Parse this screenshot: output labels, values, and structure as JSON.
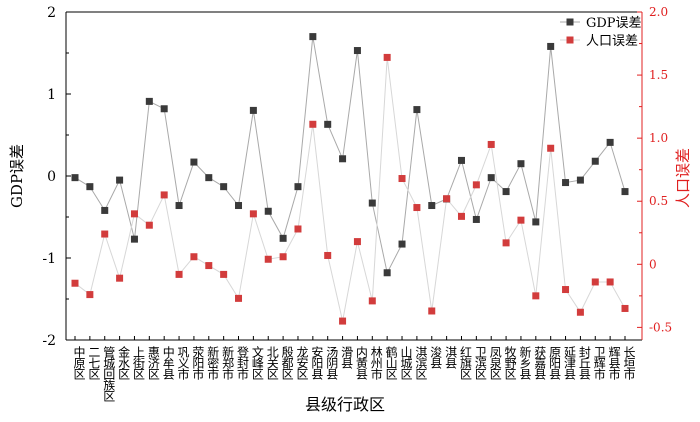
{
  "chart_data": {
    "type": "line",
    "title": "",
    "xlabel": "县级行政区",
    "ylabel_left": "GDP误差",
    "ylabel_right": "人口误差",
    "ylim_left": [
      -2,
      2
    ],
    "ylim_right": [
      -0.6,
      2.0
    ],
    "yticks_left": [
      -2,
      -1,
      0,
      1,
      2
    ],
    "yticks_right": [
      -0.5,
      0,
      0.5,
      1.0,
      1.5,
      2.0
    ],
    "ytick_labels_left": [
      "-2",
      "-1",
      "0",
      "1",
      "2"
    ],
    "ytick_labels_right": [
      "-0.5",
      "0",
      "0.5",
      "1.0",
      "1.5",
      "2.0"
    ],
    "grid": false,
    "legend_position": "top-right",
    "categories": [
      "中原区",
      "二七区",
      "管城回族区",
      "金水区",
      "上街区",
      "惠济区",
      "中牟县",
      "巩义市",
      "荥阳市",
      "新密市",
      "新郑市",
      "登封市",
      "文峰区",
      "北关区",
      "殷都区",
      "龙安区",
      "安阳县",
      "汤阴县",
      "滑县",
      "内黄县",
      "林州市",
      "鹤山区",
      "山城区",
      "淇滨区",
      "浚县",
      "淇县",
      "红旗区",
      "卫滨区",
      "凤泉区",
      "牧野区",
      "新乡县",
      "获嘉县",
      "原阳县",
      "延津县",
      "封丘县",
      "卫辉市",
      "辉县市",
      "长垣市"
    ],
    "series": [
      {
        "name": "GDP误差",
        "axis": "left",
        "color": "#3a3a3a",
        "line_color": "#a9a9a9",
        "values": [
          -0.02,
          -0.13,
          -0.42,
          -0.05,
          -0.77,
          0.91,
          0.82,
          -0.36,
          0.17,
          -0.02,
          -0.13,
          -0.36,
          0.8,
          -0.43,
          -0.76,
          -0.13,
          1.7,
          0.63,
          0.21,
          1.53,
          -0.33,
          -1.18,
          -0.83,
          0.81,
          -0.36,
          -0.28,
          0.19,
          -0.53,
          -0.02,
          -0.19,
          0.15,
          -0.56,
          1.58,
          -0.08,
          -0.05,
          0.18,
          0.41,
          -0.19
        ]
      },
      {
        "name": "人口误差",
        "axis": "right",
        "color": "#d23c3c",
        "line_color": "#d7d7d7",
        "values": [
          -0.15,
          -0.24,
          0.24,
          -0.11,
          0.4,
          0.31,
          0.55,
          -0.08,
          0.06,
          -0.01,
          -0.08,
          -0.27,
          0.4,
          0.04,
          0.06,
          0.28,
          1.11,
          0.07,
          -0.45,
          0.18,
          -0.29,
          1.64,
          0.68,
          0.45,
          -0.37,
          0.52,
          0.38,
          0.63,
          0.95,
          0.17,
          0.35,
          -0.25,
          0.92,
          -0.2,
          -0.38,
          -0.14,
          -0.14,
          -0.35
        ]
      }
    ]
  }
}
